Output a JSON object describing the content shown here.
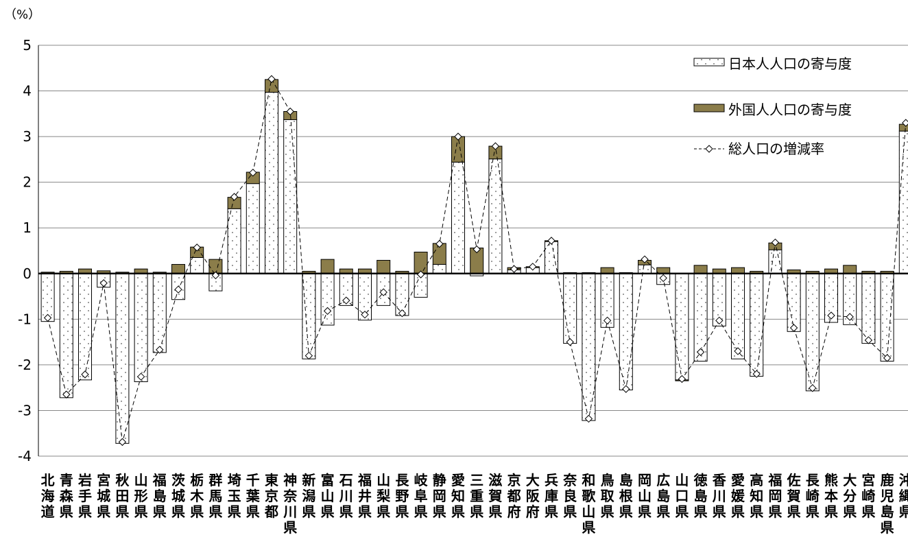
{
  "chart_data": {
    "type": "bar",
    "unit_label": "（%）",
    "ylim": [
      -4,
      5
    ],
    "yticks": [
      "5",
      "4",
      "3",
      "2",
      "1",
      "0",
      "-1",
      "-2",
      "-3",
      "-4"
    ],
    "grid": true,
    "legend_position": "top-right",
    "categories": [
      "北海道",
      "青森県",
      "岩手県",
      "宮城県",
      "秋田県",
      "山形県",
      "福島県",
      "茨城県",
      "栃木県",
      "群馬県",
      "埼玉県",
      "千葉県",
      "東京都",
      "神奈川県",
      "新潟県",
      "富山県",
      "石川県",
      "福井県",
      "山梨県",
      "長野県",
      "岐阜県",
      "静岡県",
      "愛知県",
      "三重県",
      "滋賀県",
      "京都府",
      "大阪府",
      "兵庫県",
      "奈良県",
      "和歌山県",
      "鳥取県",
      "島根県",
      "岡山県",
      "広島県",
      "山口県",
      "徳島県",
      "香川県",
      "愛媛県",
      "高知県",
      "福岡県",
      "佐賀県",
      "長崎県",
      "熊本県",
      "大分県",
      "宮崎県",
      "鹿児島県",
      "沖縄県"
    ],
    "series": [
      {
        "name": "日本人人口の寄与度",
        "kind": "bar",
        "pattern": "dotted",
        "color": "#ffffff",
        "values": [
          -1.05,
          -2.72,
          -2.33,
          -0.3,
          -3.72,
          -2.37,
          -1.73,
          -0.57,
          0.35,
          -0.38,
          1.42,
          1.97,
          3.97,
          3.37,
          -1.87,
          -1.13,
          -0.7,
          -1.02,
          -0.7,
          -0.92,
          -0.52,
          0.2,
          2.44,
          -0.05,
          2.51,
          0.08,
          0.13,
          0.7,
          -1.53,
          -3.22,
          -1.18,
          -2.55,
          0.19,
          -0.24,
          -2.33,
          -1.92,
          -1.15,
          -1.87,
          -2.25,
          0.52,
          -1.27,
          -2.57,
          -1.07,
          -1.12,
          -1.53,
          -1.92,
          3.12
        ]
      },
      {
        "name": "外国人人口の寄与度",
        "kind": "bar",
        "color": "#8b7d4a",
        "values": [
          0.03,
          0.05,
          0.1,
          0.06,
          0.03,
          0.1,
          0.03,
          0.2,
          0.23,
          0.31,
          0.25,
          0.25,
          0.28,
          0.18,
          0.05,
          0.31,
          0.1,
          0.1,
          0.29,
          0.05,
          0.47,
          0.46,
          0.56,
          0.56,
          0.28,
          0.05,
          0.02,
          0.02,
          0.02,
          0.02,
          0.13,
          0.02,
          0.1,
          0.13,
          -0.02,
          0.18,
          0.1,
          0.13,
          0.05,
          0.15,
          0.08,
          0.05,
          0.1,
          0.18,
          0.05,
          0.05,
          0.15
        ]
      },
      {
        "name": "総人口の増減率",
        "kind": "line",
        "line_style": "dashed",
        "marker": "diamond",
        "color": "#000000",
        "values": [
          -0.97,
          -2.65,
          -2.21,
          -0.21,
          -3.69,
          -2.26,
          -1.67,
          -0.35,
          0.57,
          -0.04,
          1.68,
          2.21,
          4.26,
          3.55,
          -1.8,
          -0.82,
          -0.59,
          -0.9,
          -0.41,
          -0.87,
          -0.02,
          0.65,
          3.0,
          0.53,
          2.79,
          0.1,
          0.15,
          0.72,
          -1.5,
          -3.18,
          -1.03,
          -2.53,
          0.31,
          -0.1,
          -2.31,
          -1.72,
          -1.03,
          -1.7,
          -2.2,
          0.68,
          -1.19,
          -2.51,
          -0.92,
          -0.95,
          -1.46,
          -1.85,
          3.3
        ]
      }
    ]
  }
}
